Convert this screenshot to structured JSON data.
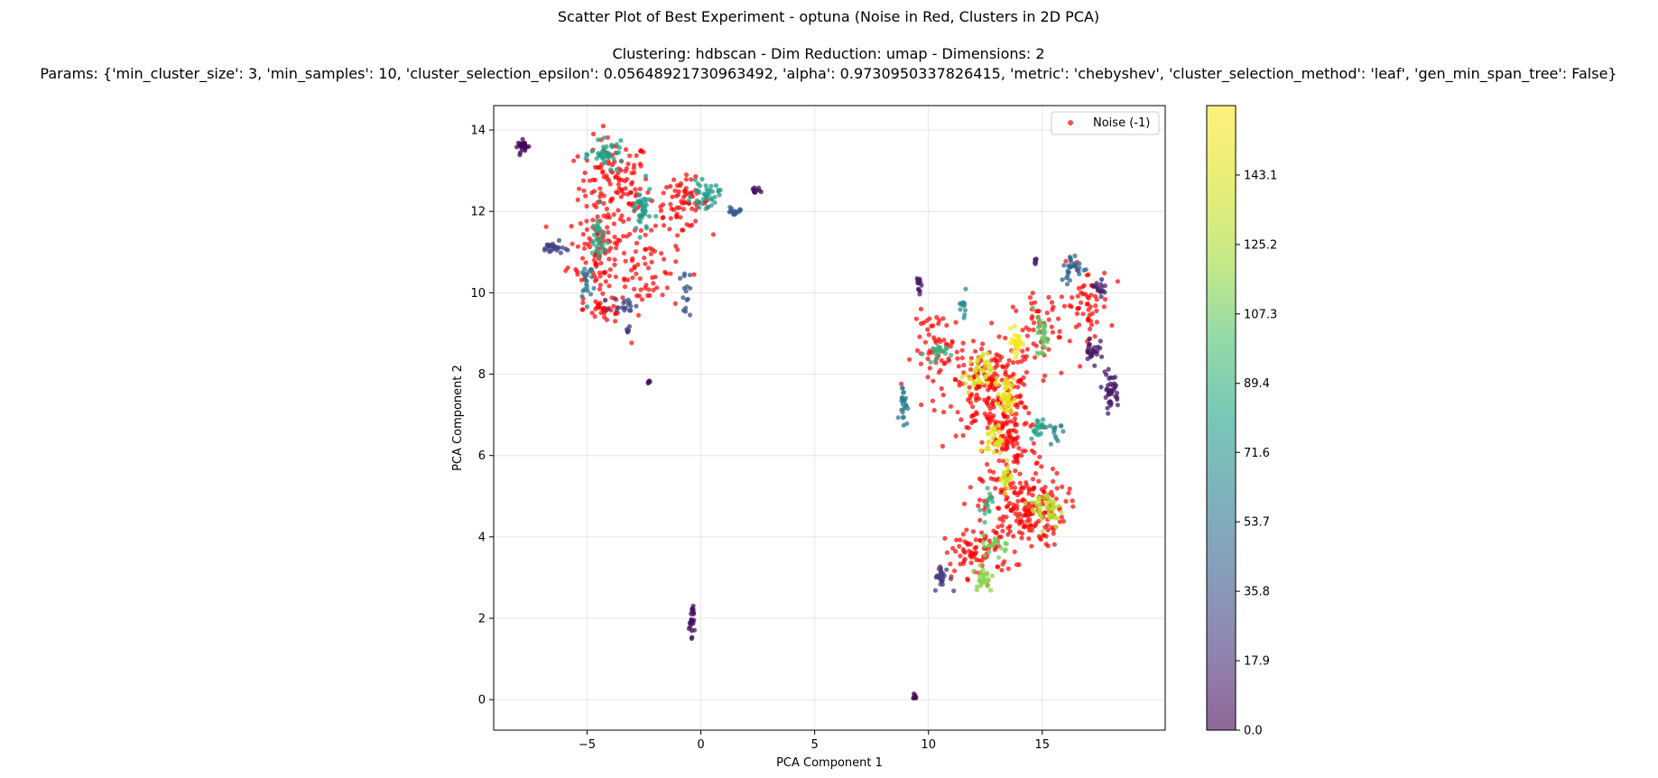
{
  "chart_data": {
    "type": "scatter",
    "title": "Scatter Plot of Best Experiment - optuna (Noise in Red, Clusters in 2D PCA)",
    "subtitle_lines": [
      "Clustering: hdbscan - Dim Reduction: umap - Dimensions: 2",
      "Params: {'min_cluster_size': 3, 'min_samples': 10, 'cluster_selection_epsilon': 0.05648921730963492, 'alpha': 0.9730950337826415, 'metric': 'chebyshev', 'cluster_selection_method': 'leaf', 'gen_min_span_tree': False}"
    ],
    "xlabel": "PCA Component 1",
    "ylabel": "PCA Component 2",
    "xlim": [
      -9.1,
      20.4
    ],
    "ylim": [
      -0.75,
      14.6
    ],
    "xticks": [
      -5,
      0,
      5,
      10,
      15
    ],
    "xtick_labels": [
      "−5",
      "0",
      "5",
      "10",
      "15"
    ],
    "yticks": [
      0,
      2,
      4,
      6,
      8,
      10,
      12,
      14
    ],
    "ytick_labels": [
      "0",
      "2",
      "4",
      "6",
      "8",
      "10",
      "12",
      "14"
    ],
    "grid": true,
    "legend": {
      "entries": [
        "Noise (-1)"
      ],
      "position": "top-right"
    },
    "colorbar": {
      "colormap": "viridis",
      "alpha": 0.6,
      "range": [
        0,
        161
      ],
      "ticks": [
        0.0,
        17.9,
        35.8,
        53.7,
        71.6,
        89.4,
        107.3,
        125.2,
        143.1
      ],
      "tick_labels": [
        "0.0",
        "17.9",
        "35.8",
        "53.7",
        "71.6",
        "89.4",
        "107.3",
        "125.2",
        "143.1"
      ]
    },
    "noise_color": "#ff0000",
    "noise_regions": [
      {
        "cx": -3.8,
        "cy": 12.6,
        "sx": 1.3,
        "sy": 1.0,
        "n": 130
      },
      {
        "cx": -4.5,
        "cy": 11.0,
        "sx": 1.1,
        "sy": 0.9,
        "n": 90
      },
      {
        "cx": -2.3,
        "cy": 10.6,
        "sx": 1.2,
        "sy": 0.9,
        "n": 60
      },
      {
        "cx": -0.8,
        "cy": 12.2,
        "sx": 1.0,
        "sy": 0.5,
        "n": 70
      },
      {
        "cx": -4.2,
        "cy": 9.6,
        "sx": 0.8,
        "sy": 0.3,
        "n": 35
      },
      {
        "cx": 12.8,
        "cy": 7.6,
        "sx": 1.6,
        "sy": 0.9,
        "n": 200
      },
      {
        "cx": 13.6,
        "cy": 6.3,
        "sx": 1.0,
        "sy": 0.9,
        "n": 90
      },
      {
        "cx": 14.2,
        "cy": 4.7,
        "sx": 1.5,
        "sy": 0.8,
        "n": 200
      },
      {
        "cx": 12.2,
        "cy": 3.6,
        "sx": 1.3,
        "sy": 0.5,
        "n": 80
      },
      {
        "cx": 16.9,
        "cy": 9.7,
        "sx": 0.9,
        "sy": 0.8,
        "n": 60
      },
      {
        "cx": 10.5,
        "cy": 8.6,
        "sx": 1.0,
        "sy": 0.8,
        "n": 60
      },
      {
        "cx": 14.8,
        "cy": 9.2,
        "sx": 0.9,
        "sy": 0.6,
        "n": 50
      }
    ],
    "clusters": [
      {
        "x": -7.8,
        "y": 13.6,
        "v": 2,
        "n": 25,
        "sx": 0.2,
        "sy": 0.12
      },
      {
        "x": 2.4,
        "y": 12.5,
        "v": 8,
        "n": 14,
        "sx": 0.15,
        "sy": 0.1
      },
      {
        "x": -0.4,
        "y": 2.0,
        "v": 5,
        "n": 22,
        "sx": 0.1,
        "sy": 0.35
      },
      {
        "x": -2.3,
        "y": 7.8,
        "v": 6,
        "n": 5,
        "sx": 0.05,
        "sy": 0.05
      },
      {
        "x": 9.4,
        "y": 0.05,
        "v": 3,
        "n": 8,
        "sx": 0.06,
        "sy": 0.07
      },
      {
        "x": -6.5,
        "y": 11.1,
        "v": 28,
        "n": 25,
        "sx": 0.4,
        "sy": 0.12
      },
      {
        "x": -5.0,
        "y": 10.3,
        "v": 55,
        "n": 20,
        "sx": 0.3,
        "sy": 0.45
      },
      {
        "x": -4.1,
        "y": 13.4,
        "v": 80,
        "n": 40,
        "sx": 0.6,
        "sy": 0.25
      },
      {
        "x": -2.6,
        "y": 12.0,
        "v": 75,
        "n": 40,
        "sx": 0.35,
        "sy": 0.5
      },
      {
        "x": -4.5,
        "y": 11.3,
        "v": 85,
        "n": 30,
        "sx": 0.3,
        "sy": 0.6
      },
      {
        "x": 0.2,
        "y": 12.4,
        "v": 78,
        "n": 40,
        "sx": 0.5,
        "sy": 0.25
      },
      {
        "x": 1.5,
        "y": 12.0,
        "v": 40,
        "n": 15,
        "sx": 0.3,
        "sy": 0.1
      },
      {
        "x": -3.3,
        "y": 9.7,
        "v": 30,
        "n": 18,
        "sx": 0.5,
        "sy": 0.15
      },
      {
        "x": -0.7,
        "y": 10.0,
        "v": 35,
        "n": 15,
        "sx": 0.2,
        "sy": 0.5
      },
      {
        "x": -3.2,
        "y": 9.1,
        "v": 20,
        "n": 6,
        "sx": 0.05,
        "sy": 0.1
      },
      {
        "x": 9.6,
        "y": 10.3,
        "v": 10,
        "n": 12,
        "sx": 0.1,
        "sy": 0.4
      },
      {
        "x": 8.9,
        "y": 7.3,
        "v": 60,
        "n": 25,
        "sx": 0.15,
        "sy": 0.4
      },
      {
        "x": 10.3,
        "y": 8.5,
        "v": 90,
        "n": 20,
        "sx": 0.4,
        "sy": 0.2
      },
      {
        "x": 11.5,
        "y": 9.7,
        "v": 70,
        "n": 12,
        "sx": 0.2,
        "sy": 0.5
      },
      {
        "x": 12.2,
        "y": 8.0,
        "v": 140,
        "n": 40,
        "sx": 0.5,
        "sy": 0.4
      },
      {
        "x": 13.4,
        "y": 7.4,
        "v": 150,
        "n": 40,
        "sx": 0.3,
        "sy": 0.4
      },
      {
        "x": 13.9,
        "y": 8.8,
        "v": 158,
        "n": 30,
        "sx": 0.2,
        "sy": 0.3
      },
      {
        "x": 12.9,
        "y": 6.4,
        "v": 145,
        "n": 30,
        "sx": 0.3,
        "sy": 0.3
      },
      {
        "x": 13.4,
        "y": 5.5,
        "v": 138,
        "n": 20,
        "sx": 0.2,
        "sy": 0.3
      },
      {
        "x": 15.2,
        "y": 4.7,
        "v": 128,
        "n": 45,
        "sx": 0.6,
        "sy": 0.4
      },
      {
        "x": 12.4,
        "y": 3.0,
        "v": 115,
        "n": 25,
        "sx": 0.4,
        "sy": 0.3
      },
      {
        "x": 13.0,
        "y": 3.8,
        "v": 110,
        "n": 20,
        "sx": 0.5,
        "sy": 0.2
      },
      {
        "x": 10.6,
        "y": 3.0,
        "v": 25,
        "n": 25,
        "sx": 0.3,
        "sy": 0.25
      },
      {
        "x": 15.0,
        "y": 9.0,
        "v": 105,
        "n": 25,
        "sx": 0.2,
        "sy": 0.5
      },
      {
        "x": 16.4,
        "y": 10.6,
        "v": 45,
        "n": 30,
        "sx": 0.5,
        "sy": 0.3
      },
      {
        "x": 17.2,
        "y": 8.6,
        "v": 10,
        "n": 25,
        "sx": 0.25,
        "sy": 0.35
      },
      {
        "x": 18.0,
        "y": 7.6,
        "v": 10,
        "n": 40,
        "sx": 0.3,
        "sy": 0.35
      },
      {
        "x": 17.5,
        "y": 10.1,
        "v": 12,
        "n": 15,
        "sx": 0.3,
        "sy": 0.25
      },
      {
        "x": 14.7,
        "y": 10.8,
        "v": 15,
        "n": 8,
        "sx": 0.05,
        "sy": 0.1
      },
      {
        "x": 14.8,
        "y": 6.7,
        "v": 80,
        "n": 18,
        "sx": 0.3,
        "sy": 0.2
      },
      {
        "x": 15.6,
        "y": 6.6,
        "v": 65,
        "n": 12,
        "sx": 0.2,
        "sy": 0.3
      },
      {
        "x": 12.6,
        "y": 4.9,
        "v": 90,
        "n": 15,
        "sx": 0.2,
        "sy": 0.3
      }
    ]
  }
}
